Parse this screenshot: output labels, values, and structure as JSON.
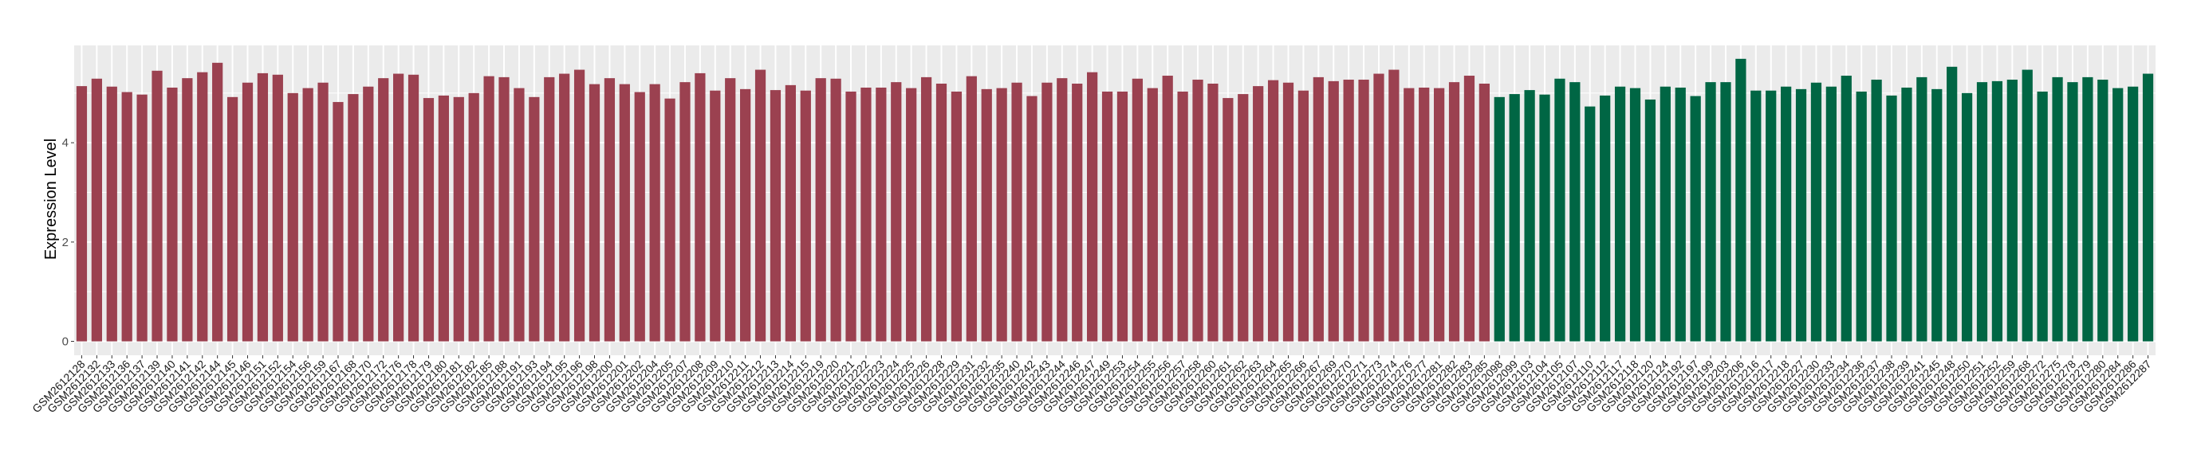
{
  "chart_data": {
    "type": "bar",
    "title": "",
    "xlabel": "",
    "ylabel": "Expression Level",
    "ylim": [
      -0.28,
      5.96
    ],
    "yticks": [
      0,
      2,
      4
    ],
    "grid": true,
    "legend": "none",
    "palette": [
      "#9b4150",
      "#006644"
    ],
    "panel_background": "#ebebeb",
    "categories": [
      "GSM2612128",
      "GSM2612132",
      "GSM2612133",
      "GSM2612136",
      "GSM2612137",
      "GSM2612139",
      "GSM2612140",
      "GSM2612141",
      "GSM2612142",
      "GSM2612144",
      "GSM2612145",
      "GSM2612146",
      "GSM2612151",
      "GSM2612152",
      "GSM2612154",
      "GSM2612156",
      "GSM2612159",
      "GSM2612167",
      "GSM2612168",
      "GSM2612170",
      "GSM2612172",
      "GSM2612176",
      "GSM2612178",
      "GSM2612179",
      "GSM2612180",
      "GSM2612181",
      "GSM2612182",
      "GSM2612185",
      "GSM2612188",
      "GSM2612191",
      "GSM2612193",
      "GSM2612194",
      "GSM2612195",
      "GSM2612196",
      "GSM2612198",
      "GSM2612200",
      "GSM2612201",
      "GSM2612202",
      "GSM2612204",
      "GSM2612205",
      "GSM2612207",
      "GSM2612208",
      "GSM2612209",
      "GSM2612210",
      "GSM2612211",
      "GSM2612212",
      "GSM2612213",
      "GSM2612214",
      "GSM2612215",
      "GSM2612219",
      "GSM2612220",
      "GSM2612221",
      "GSM2612222",
      "GSM2612223",
      "GSM2612224",
      "GSM2612225",
      "GSM2612226",
      "GSM2612228",
      "GSM2612229",
      "GSM2612231",
      "GSM2612232",
      "GSM2612235",
      "GSM2612240",
      "GSM2612242",
      "GSM2612243",
      "GSM2612244",
      "GSM2612246",
      "GSM2612247",
      "GSM2612249",
      "GSM2612253",
      "GSM2612254",
      "GSM2612255",
      "GSM2612256",
      "GSM2612257",
      "GSM2612258",
      "GSM2612260",
      "GSM2612261",
      "GSM2612262",
      "GSM2612263",
      "GSM2612264",
      "GSM2612265",
      "GSM2612266",
      "GSM2612267",
      "GSM2612269",
      "GSM2612270",
      "GSM2612271",
      "GSM2612273",
      "GSM2612274",
      "GSM2612276",
      "GSM2612277",
      "GSM2612281",
      "GSM2612282",
      "GSM2612283",
      "GSM2612285",
      "GSM2612098",
      "GSM2612099",
      "GSM2612103",
      "GSM2612104",
      "GSM2612105",
      "GSM2612107",
      "GSM2612110",
      "GSM2612112",
      "GSM2612117",
      "GSM2612118",
      "GSM2612120",
      "GSM2612124",
      "GSM2612192",
      "GSM2612197",
      "GSM2612199",
      "GSM2612203",
      "GSM2612206",
      "GSM2612216",
      "GSM2612217",
      "GSM2612218",
      "GSM2612227",
      "GSM2612230",
      "GSM2612233",
      "GSM2612234",
      "GSM2612236",
      "GSM2612237",
      "GSM2612238",
      "GSM2612239",
      "GSM2612241",
      "GSM2612245",
      "GSM2612248",
      "GSM2612250",
      "GSM2612251",
      "GSM2612252",
      "GSM2612259",
      "GSM2612268",
      "GSM2612272",
      "GSM2612275",
      "GSM2612278",
      "GSM2612279",
      "GSM2612280",
      "GSM2612284",
      "GSM2612286",
      "GSM2612287"
    ],
    "values": [
      5.14,
      5.29,
      5.13,
      5.02,
      4.97,
      5.45,
      5.11,
      5.3,
      5.42,
      5.61,
      4.92,
      5.21,
      5.4,
      5.37,
      5.0,
      5.1,
      5.21,
      4.82,
      4.98,
      5.13,
      5.3,
      5.39,
      5.37,
      4.9,
      4.95,
      4.92,
      5.0,
      5.34,
      5.32,
      5.1,
      4.92,
      5.32,
      5.39,
      5.47,
      5.18,
      5.3,
      5.18,
      5.02,
      5.18,
      4.89,
      5.22,
      5.4,
      5.05,
      5.3,
      5.08,
      5.47,
      5.06,
      5.16,
      5.05,
      5.3,
      5.29,
      5.03,
      5.11,
      5.11,
      5.22,
      5.1,
      5.32,
      5.19,
      5.03,
      5.34,
      5.08,
      5.1,
      5.21,
      4.94,
      5.21,
      5.3,
      5.19,
      5.42,
      5.03,
      5.03,
      5.29,
      5.1,
      5.35,
      5.03,
      5.27,
      5.19,
      4.9,
      4.98,
      5.14,
      5.26,
      5.21,
      5.05,
      5.32,
      5.24,
      5.27,
      5.27,
      5.39,
      5.47,
      5.1,
      5.11,
      5.1,
      5.22,
      5.35,
      5.19,
      4.92,
      4.98,
      5.06,
      4.97,
      5.29,
      5.22,
      4.73,
      4.95,
      5.13,
      5.1,
      4.87,
      5.13,
      5.11,
      4.94,
      5.22,
      5.22,
      5.69,
      5.05,
      5.05,
      5.13,
      5.08,
      5.21,
      5.13,
      5.35,
      5.03,
      5.27,
      4.95,
      5.11,
      5.32,
      5.08,
      5.53,
      5.0,
      5.22,
      5.24,
      5.27,
      5.47,
      5.03,
      5.32,
      5.22,
      5.32,
      5.27,
      5.1,
      5.13,
      5.39
    ],
    "group": [
      0,
      0,
      0,
      0,
      0,
      0,
      0,
      0,
      0,
      0,
      0,
      0,
      0,
      0,
      0,
      0,
      0,
      0,
      0,
      0,
      0,
      0,
      0,
      0,
      0,
      0,
      0,
      0,
      0,
      0,
      0,
      0,
      0,
      0,
      0,
      0,
      0,
      0,
      0,
      0,
      0,
      0,
      0,
      0,
      0,
      0,
      0,
      0,
      0,
      0,
      0,
      0,
      0,
      0,
      0,
      0,
      0,
      0,
      0,
      0,
      0,
      0,
      0,
      0,
      0,
      0,
      0,
      0,
      0,
      0,
      0,
      0,
      0,
      0,
      0,
      0,
      0,
      0,
      0,
      0,
      0,
      0,
      0,
      0,
      0,
      0,
      0,
      0,
      0,
      0,
      0,
      0,
      0,
      0,
      1,
      1,
      1,
      1,
      1,
      1,
      1,
      1,
      1,
      1,
      1,
      1,
      1,
      1,
      1,
      1,
      1,
      1,
      1,
      1,
      1,
      1,
      1,
      1,
      1,
      1,
      1,
      1,
      1,
      1,
      1,
      1,
      1,
      1,
      1,
      1,
      1,
      1,
      1,
      1,
      1,
      1,
      1,
      1
    ]
  }
}
